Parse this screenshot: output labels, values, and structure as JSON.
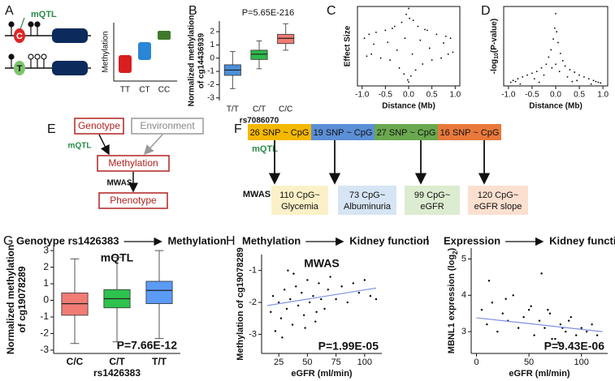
{
  "panel_labels": [
    "A",
    "B",
    "C",
    "D",
    "E",
    "F",
    "G",
    "H",
    "I"
  ],
  "diagram_a": {
    "annotation": "mQTL",
    "alleles": [
      "C",
      "T"
    ],
    "ylabel": "Methylation",
    "categories": [
      "TT",
      "CT",
      "CC"
    ]
  },
  "diagram_e": {
    "nodes": [
      "Genotype",
      "Environment",
      "Methylation",
      "Phenotype"
    ],
    "edges": [
      "mQTL",
      "MWAS"
    ]
  },
  "diagram_f": {
    "mqtl_label": "mQTL",
    "mwas_label": "MWAS",
    "snp_boxes": [
      "26 SNP ~ CpG",
      "19 SNP ~ CpG",
      "27 SNP ~ CpG",
      "16 SNP ~ CpG"
    ],
    "cpg_boxes": [
      [
        "110 CpG~",
        "Glycemia"
      ],
      [
        "73 CpG~",
        "Albuminuria"
      ],
      [
        "99 CpG~",
        "eGFR"
      ],
      [
        "120 CpG~",
        "eGFR slope"
      ]
    ]
  },
  "chart_data": [
    {
      "type": "box",
      "annotation": "P=5.65E-216",
      "ylabel": [
        "Normalized methylation",
        "of cg14436939"
      ],
      "xlabel": "rs7086070",
      "categories": [
        "T/T",
        "C/T",
        "C/C"
      ],
      "colors": [
        "#4a90d9",
        "#2db84b",
        "#f07c74"
      ],
      "boxes": [
        {
          "low": -2.3,
          "q1": -1.3,
          "median": -0.9,
          "q3": -0.5,
          "high": 0.5
        },
        {
          "low": -0.8,
          "q1": -0.1,
          "median": 0.3,
          "q3": 0.6,
          "high": 1.3
        },
        {
          "low": 0.6,
          "q1": 1.1,
          "median": 1.5,
          "q3": 1.8,
          "high": 2.6
        }
      ],
      "ylim": [
        -3.2,
        2.8
      ],
      "yticks": [
        -3,
        -2,
        -1,
        0,
        1,
        2
      ]
    },
    {
      "type": "scatter",
      "ylabel": "Effect Size",
      "xlabel": "Distance (Mb)",
      "color": "#000000",
      "x": [
        -0.95,
        -0.9,
        -0.85,
        -0.8,
        -0.7,
        -0.6,
        -0.5,
        -0.4,
        -0.3,
        -0.2,
        -0.15,
        -0.1,
        -0.05,
        -0.02,
        0,
        0.02,
        0.05,
        0.1,
        0.15,
        0.2,
        0.3,
        0.4,
        0.5,
        0.6,
        0.7,
        0.8,
        0.85,
        0.9,
        0.95,
        -0.75,
        -0.45,
        -0.25,
        -0.08,
        0.08,
        0.25,
        0.45,
        0.75,
        -0.35,
        0.35,
        0.0
      ],
      "values": [
        0.2,
        -0.25,
        0.3,
        -0.2,
        0.35,
        -0.3,
        0.4,
        -0.35,
        0.5,
        -0.55,
        0.6,
        -0.7,
        0.8,
        -0.85,
        0.95,
        0.7,
        -0.75,
        0.65,
        -0.6,
        0.5,
        -0.45,
        0.4,
        -0.35,
        0.3,
        -0.3,
        0.25,
        -0.2,
        0.2,
        -0.15,
        0.05,
        0.1,
        -0.1,
        0.2,
        -0.2,
        0.15,
        -0.05,
        0.08,
        0.45,
        0.42,
        -0.9
      ],
      "xlim": [
        -1.1,
        1.1
      ],
      "ylim": [
        -1,
        1
      ],
      "xticks": [
        {
          "value": -1,
          "label": "-1.0"
        },
        -0.5,
        {
          "value": 0,
          "label": "0.0"
        },
        0.5,
        {
          "value": 1,
          "label": "1.0"
        }
      ]
    },
    {
      "type": "scatter",
      "ylabel": [
        "-log",
        "10",
        "(P-value)"
      ],
      "xlabel": "Distance (Mb)",
      "color": "#000000",
      "x": [
        -0.95,
        -0.9,
        -0.85,
        -0.8,
        -0.7,
        -0.6,
        -0.5,
        -0.4,
        -0.3,
        -0.2,
        -0.15,
        -0.1,
        -0.05,
        -0.02,
        0,
        0.02,
        0.05,
        0.1,
        0.15,
        0.2,
        0.3,
        0.4,
        0.5,
        0.6,
        0.7,
        0.8,
        0.85,
        0.9,
        0.95,
        -0.75,
        -0.45,
        -0.25,
        -0.08,
        0.08,
        0.25,
        0.45,
        0.75,
        -0.35,
        0.35,
        0.0
      ],
      "values": [
        10,
        15,
        12,
        20,
        25,
        30,
        35,
        40,
        50,
        60,
        80,
        100,
        130,
        160,
        200,
        150,
        120,
        90,
        70,
        55,
        45,
        38,
        30,
        25,
        20,
        15,
        12,
        10,
        8,
        5,
        20,
        30,
        50,
        40,
        25,
        15,
        5,
        10,
        12,
        60
      ],
      "xlim": [
        -1.1,
        1.1
      ],
      "ylim": [
        0,
        220
      ],
      "xticks": [
        {
          "value": -1,
          "label": "-1.0"
        },
        -0.5,
        {
          "value": 0,
          "label": "0.0"
        },
        0.5,
        {
          "value": 1,
          "label": "1.0"
        }
      ]
    },
    {
      "type": "box",
      "heading": [
        "Genotype rs1426383",
        "Methylation"
      ],
      "title": "mQTL",
      "annotation": "P=7.66E-12",
      "ylabel": [
        "Normalized methylation",
        "of cg19078289"
      ],
      "xlabel": "rs1426383",
      "categories": [
        "C/C",
        "C/T",
        "T/T"
      ],
      "colors": [
        "#f07c74",
        "#2ec24e",
        "#5b9bf5"
      ],
      "boxes": [
        {
          "low": -2.6,
          "q1": -0.9,
          "median": -0.2,
          "q3": 0.45,
          "high": 2.5
        },
        {
          "low": -2.5,
          "q1": -0.45,
          "median": 0.1,
          "q3": 0.65,
          "high": 2.6
        },
        {
          "low": -2.3,
          "q1": -0.2,
          "median": 0.6,
          "q3": 1.15,
          "high": 3.0
        }
      ],
      "ylim": [
        -3.2,
        3.3
      ],
      "yticks": [
        -3,
        -2,
        -1,
        0,
        1,
        2,
        3
      ]
    },
    {
      "type": "scatter",
      "heading": [
        "Methylation",
        "Kidney function"
      ],
      "title": "MWAS",
      "annotation": "P=1.99E-05",
      "ylabel": "Methylation of cg19078289",
      "xlabel": "eGFR (ml/min)",
      "color": "#000000",
      "x": [
        18,
        20,
        22,
        25,
        27,
        30,
        32,
        35,
        37,
        40,
        42,
        45,
        47,
        50,
        52,
        55,
        57,
        60,
        62,
        65,
        68,
        70,
        75,
        80,
        85,
        90,
        95,
        100,
        105,
        110,
        28,
        38,
        48,
        58,
        33
      ],
      "values": [
        -2.3,
        -1.8,
        -2.9,
        -2.0,
        -2.5,
        -1.6,
        -2.2,
        -1.9,
        -2.7,
        -1.5,
        -2.1,
        -1.7,
        -2.4,
        -1.3,
        -2.0,
        -1.8,
        -2.6,
        -1.4,
        -1.9,
        -2.2,
        -1.6,
        -1.2,
        -1.9,
        -1.5,
        -2.0,
        -1.4,
        -1.7,
        -1.3,
        -1.8,
        -1.9,
        -3.1,
        -1.1,
        -2.8,
        -2.3,
        -1.0
      ],
      "trendline": {
        "x": [
          15,
          110
        ],
        "values": [
          -2.1,
          -1.55
        ],
        "color": "#7f8fe0"
      },
      "xlim": [
        10,
        115
      ],
      "ylim": [
        -3.6,
        -0.5
      ],
      "xticks": [
        25,
        50,
        75,
        100
      ],
      "yticks": [
        -1,
        -2,
        -3
      ]
    },
    {
      "type": "scatter",
      "heading": [
        "Expression",
        "Kidney function"
      ],
      "annotation": "P=9.43E-06",
      "ylabel": [
        "MBNL1 expression (log",
        "2",
        ")"
      ],
      "xlabel": "eGFR (ml/min)",
      "color": "#000000",
      "x": [
        5,
        10,
        15,
        20,
        25,
        30,
        35,
        40,
        45,
        50,
        55,
        60,
        65,
        70,
        75,
        80,
        85,
        90,
        95,
        100,
        105,
        110,
        115,
        12,
        28,
        52,
        68,
        78,
        88,
        62,
        72,
        82
      ],
      "values": [
        3.6,
        3.2,
        3.8,
        3.0,
        3.5,
        3.3,
        4.0,
        3.1,
        3.4,
        3.6,
        2.9,
        3.3,
        3.1,
        3.5,
        2.8,
        3.2,
        3.0,
        3.4,
        2.9,
        3.1,
        3.0,
        3.2,
        2.9,
        4.4,
        3.9,
        3.7,
        3.6,
        2.7,
        3.3,
        4.6,
        2.8,
        3.1
      ],
      "trendline": {
        "x": [
          0,
          120
        ],
        "values": [
          3.38,
          3.0
        ],
        "color": "#7f8fe0"
      },
      "xlim": [
        -5,
        125
      ],
      "ylim": [
        2.4,
        5.3
      ],
      "xticks": [
        0,
        50,
        100
      ],
      "yticks": [
        3,
        4,
        5
      ]
    }
  ]
}
